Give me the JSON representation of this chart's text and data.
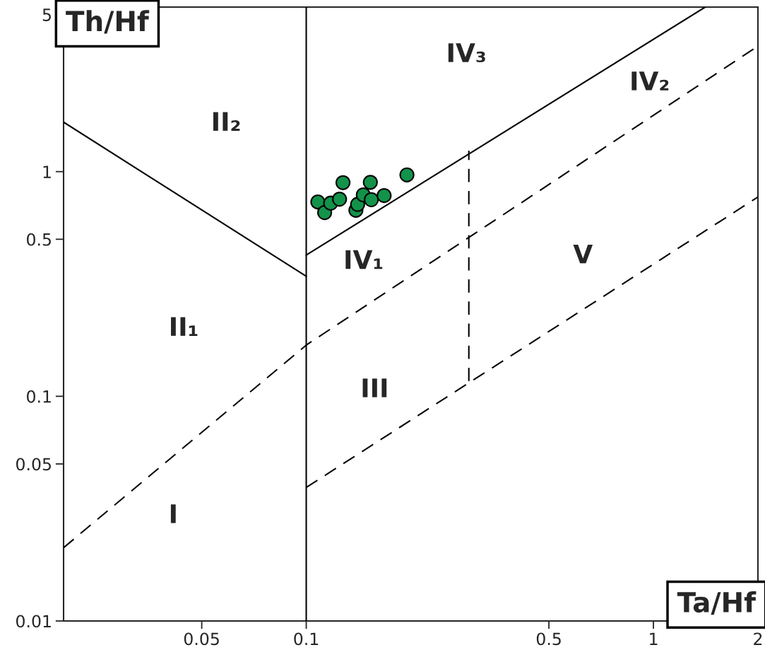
{
  "chart_data": {
    "type": "scatter",
    "xlabel": "Ta/Hf",
    "ylabel": "Th/Hf",
    "log": "xy",
    "xlim": [
      0.02,
      2
    ],
    "ylim": [
      0.01,
      5.4
    ],
    "xticks": [
      0.05,
      0.1,
      0.5,
      1,
      2
    ],
    "yticks": [
      0.01,
      0.05,
      0.1,
      0.5,
      1,
      5
    ],
    "grid": false,
    "series": [
      {
        "color": "#13924a",
        "marker": "circle",
        "x": [
          0.108,
          0.113,
          0.1176,
          0.1247,
          0.1276,
          0.139,
          0.1406,
          0.146,
          0.153,
          0.154,
          0.1676,
          0.195
        ],
        "values": [
          0.733,
          0.657,
          0.724,
          0.754,
          0.893,
          0.673,
          0.715,
          0.788,
          0.896,
          0.75,
          0.782,
          0.967
        ]
      },
      {
        "type": "line",
        "color": "#000000",
        "line_style": "solid",
        "marker": "none",
        "x": [
          0.02,
          0.1
        ],
        "values": [
          1.66,
          0.342
        ]
      },
      {
        "type": "line",
        "color": "#000000",
        "line_style": "solid",
        "marker": "none",
        "x": [
          0.1,
          1.41
        ],
        "values": [
          0.425,
          5.4
        ]
      },
      {
        "type": "line",
        "color": "#000000",
        "line_style": "dashed",
        "marker": "none",
        "x": [
          0.02,
          0.1,
          2
        ],
        "values": [
          0.0212,
          0.169,
          3.62
        ]
      },
      {
        "type": "line",
        "color": "#000000",
        "line_style": "dashed",
        "marker": "none",
        "x": [
          0.1,
          2
        ],
        "values": [
          0.0393,
          0.771
        ]
      },
      {
        "type": "line",
        "color": "#000000",
        "line_style": "dashed",
        "marker": "none",
        "x": [
          0.294,
          0.294
        ],
        "values": [
          0.117,
          1.24
        ]
      }
    ],
    "ref_lines": [
      {
        "axis": "x",
        "value": 0.1,
        "color": "#000000",
        "line_style": "solid"
      }
    ],
    "annotations": [
      "II₂",
      "IV₃",
      "IV₂",
      "IV₁",
      "V",
      "II₁",
      "III",
      "I"
    ]
  }
}
